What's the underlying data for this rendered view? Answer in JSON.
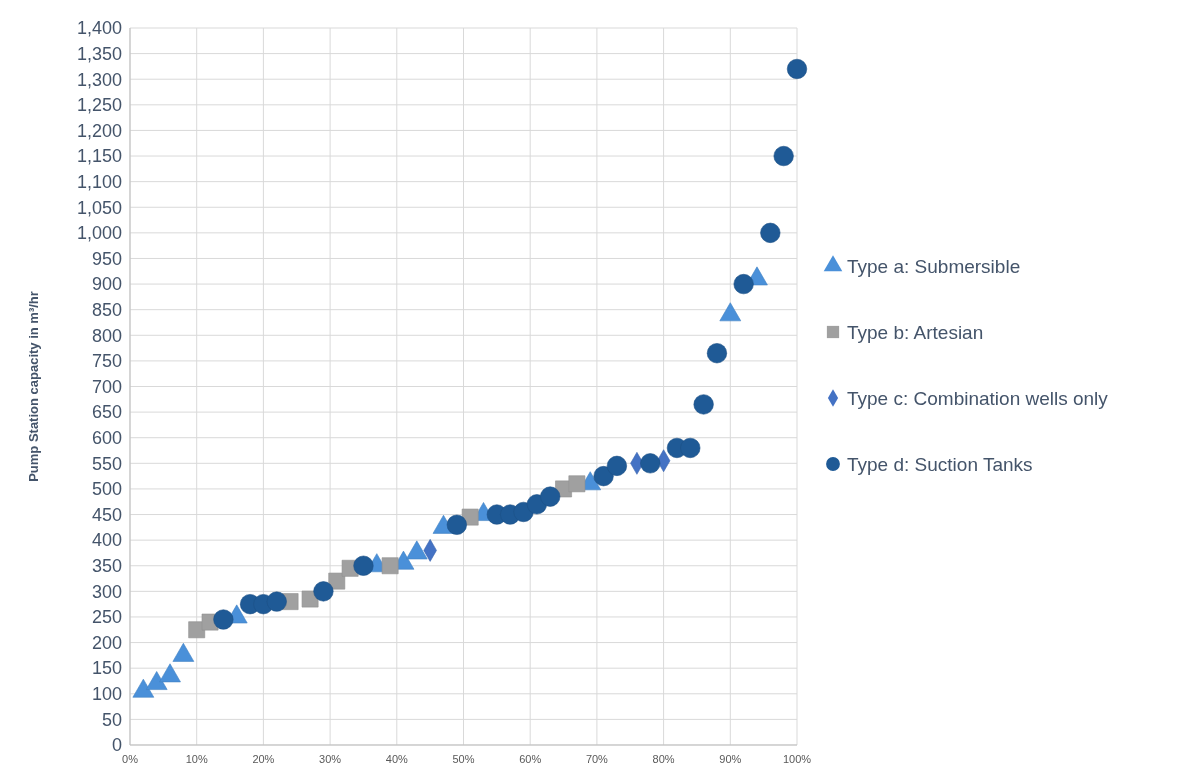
{
  "chart_data": {
    "type": "scatter",
    "ylabel": "Pump Station capacity in m³/hr",
    "xlim": [
      0,
      100
    ],
    "xticks": [
      {
        "value": 0,
        "label": "0%"
      },
      {
        "value": 10,
        "label": "10%"
      },
      {
        "value": 20,
        "label": "20%"
      },
      {
        "value": 30,
        "label": "30%"
      },
      {
        "value": 40,
        "label": "40%"
      },
      {
        "value": 50,
        "label": "50%"
      },
      {
        "value": 60,
        "label": "60%"
      },
      {
        "value": 70,
        "label": "70%"
      },
      {
        "value": 80,
        "label": "80%"
      },
      {
        "value": 90,
        "label": "90%"
      },
      {
        "value": 100,
        "label": "100%"
      }
    ],
    "ylim": [
      0,
      1400
    ],
    "yticks": [
      0,
      50,
      100,
      150,
      200,
      250,
      300,
      350,
      400,
      450,
      500,
      550,
      600,
      650,
      700,
      750,
      800,
      850,
      900,
      950,
      {
        "value": 1000,
        "label": "1,000"
      },
      {
        "value": 1050,
        "label": "1,050"
      },
      {
        "value": 1100,
        "label": "1,100"
      },
      {
        "value": 1150,
        "label": "1,150"
      },
      {
        "value": 1200,
        "label": "1,200"
      },
      {
        "value": 1250,
        "label": "1,250"
      },
      {
        "value": 1300,
        "label": "1,300"
      },
      {
        "value": 1350,
        "label": "1,350"
      },
      {
        "value": 1400,
        "label": "1,400"
      }
    ],
    "grid": true,
    "legend": "right",
    "series": [
      {
        "name": "Type a: Submersible",
        "color": "#4a90d9",
        "marker": "triangle",
        "x": [
          2,
          4,
          6,
          8,
          16,
          37,
          41,
          43,
          47,
          53,
          69,
          90,
          94
        ],
        "values": [
          105,
          120,
          135,
          175,
          250,
          350,
          355,
          375,
          425,
          450,
          510,
          840,
          910
        ]
      },
      {
        "name": "Type b: Artesian",
        "color": "#a0a0a0",
        "marker": "square",
        "x": [
          10,
          12,
          24,
          27,
          31,
          33,
          39,
          51,
          65,
          67
        ],
        "values": [
          225,
          240,
          280,
          285,
          320,
          345,
          350,
          445,
          500,
          510
        ]
      },
      {
        "name": "Type c: Combination wells only",
        "color": "#4472c4",
        "marker": "diamond",
        "x": [
          45,
          76,
          80
        ],
        "values": [
          380,
          550,
          555
        ]
      },
      {
        "name": "Type d: Suction Tanks",
        "color": "#1f5a96",
        "marker": "circle",
        "x": [
          14,
          18,
          20,
          22,
          29,
          35,
          49,
          55,
          57,
          59,
          61,
          63,
          71,
          73,
          78,
          82,
          84,
          86,
          88,
          92,
          96,
          98,
          100
        ],
        "values": [
          245,
          275,
          275,
          280,
          300,
          350,
          430,
          450,
          450,
          455,
          470,
          485,
          525,
          545,
          550,
          580,
          580,
          665,
          765,
          900,
          1000,
          1150,
          1320
        ]
      }
    ]
  }
}
